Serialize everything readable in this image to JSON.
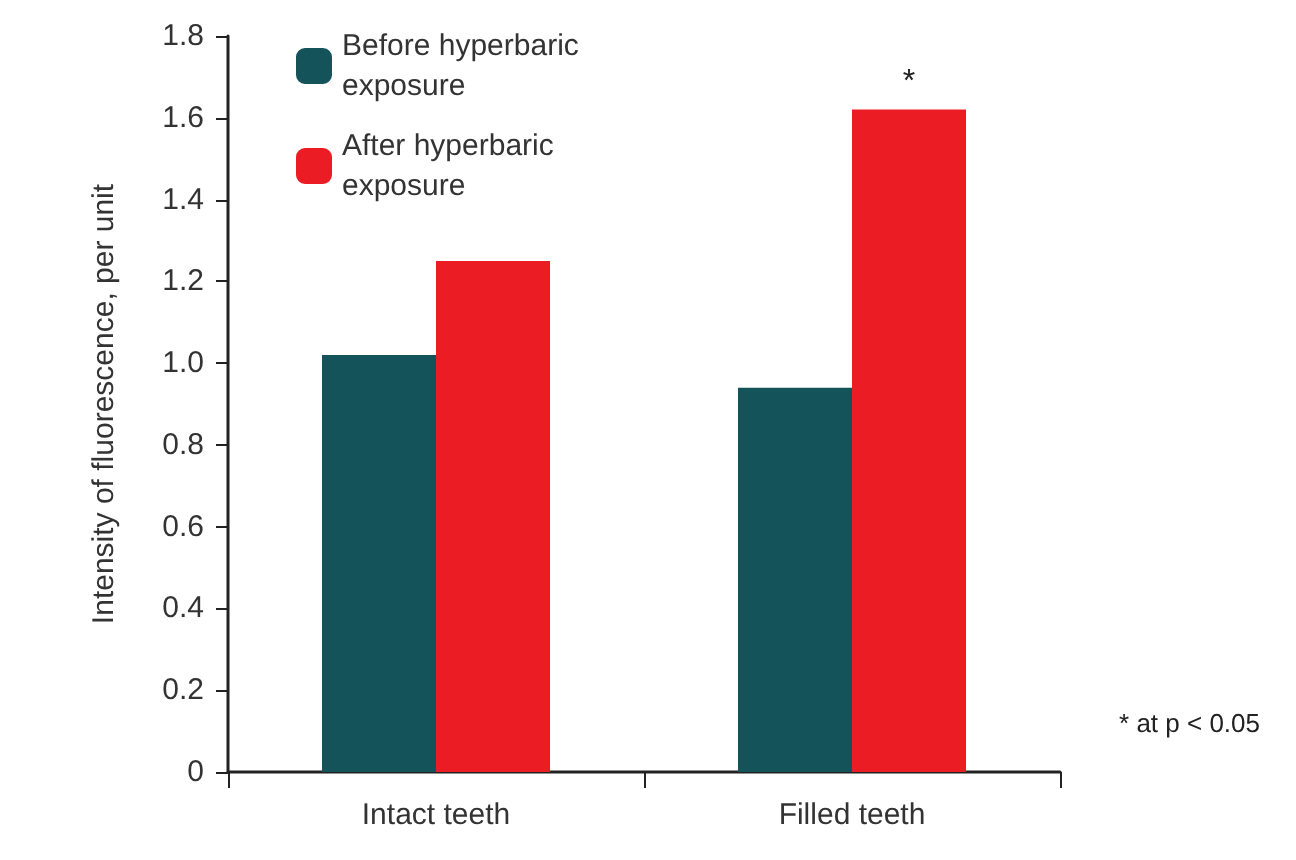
{
  "chart_data": {
    "type": "bar",
    "ylabel": "Intensity of fluorescence, per unit",
    "categories": [
      "Intact teeth",
      "Filled teeth"
    ],
    "series": [
      {
        "name": "Before hyperbaric exposure",
        "color": "#14535a",
        "values": [
          1.02,
          0.94
        ]
      },
      {
        "name": "After hyperbaric exposure",
        "color": "#ec1c24",
        "values": [
          1.25,
          1.62
        ]
      }
    ],
    "ylim": [
      0,
      1.8
    ],
    "yticks": [
      0,
      0.2,
      0.4,
      0.6,
      0.8,
      {
        "value": 1,
        "label": "1.0"
      },
      1.2,
      1.4,
      1.6,
      1.8
    ],
    "annotations": [
      {
        "text": "*",
        "x": "Filled teeth",
        "y": 1.62
      },
      "* at p < 0.05"
    ],
    "grid": false,
    "legend": "top left"
  }
}
